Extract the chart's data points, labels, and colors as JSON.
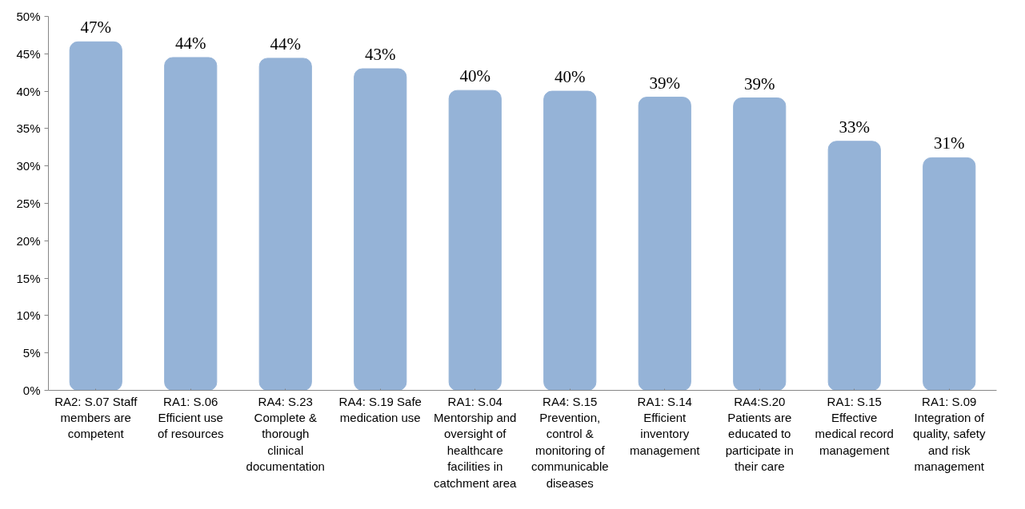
{
  "chart_data": {
    "type": "bar",
    "categories": [
      "RA2: S.07 Staff members are competent",
      "RA1: S.06 Efficient use of resources",
      "RA4: S.23 Complete & thorough clinical documentation",
      "RA4: S.19 Safe medication use",
      "RA1: S.04 Mentorship and oversight of healthcare facilities in catchment area",
      "RA4: S.15 Prevention, control & monitoring of communicable diseases",
      "RA1: S.14 Efficient inventory management",
      "RA4:S.20 Patients are educated to participate in their care",
      "RA1: S.15 Effective medical record management",
      "RA1: S.09 Integration of quality, safety and risk management"
    ],
    "values": [
      46.6,
      44.5,
      44.4,
      43.0,
      40.1,
      40.0,
      39.2,
      39.1,
      33.3,
      31.1
    ],
    "value_labels": [
      "47%",
      "44%",
      "44%",
      "43%",
      "40%",
      "40%",
      "39%",
      "39%",
      "33%",
      "31%"
    ],
    "color": "#95b3d7",
    "ylim": [
      0,
      50
    ],
    "yticks": [
      {
        "value": 0,
        "label": "0%"
      },
      {
        "value": 5,
        "label": "5%"
      },
      {
        "value": 10,
        "label": "10%"
      },
      {
        "value": 15,
        "label": "15%"
      },
      {
        "value": 20,
        "label": "20%"
      },
      {
        "value": 25,
        "label": "25%"
      },
      {
        "value": 30,
        "label": "30%"
      },
      {
        "value": 35,
        "label": "35%"
      },
      {
        "value": 40,
        "label": "40%"
      },
      {
        "value": 45,
        "label": "45%"
      },
      {
        "value": 50,
        "label": "50%"
      }
    ],
    "grid": false
  }
}
